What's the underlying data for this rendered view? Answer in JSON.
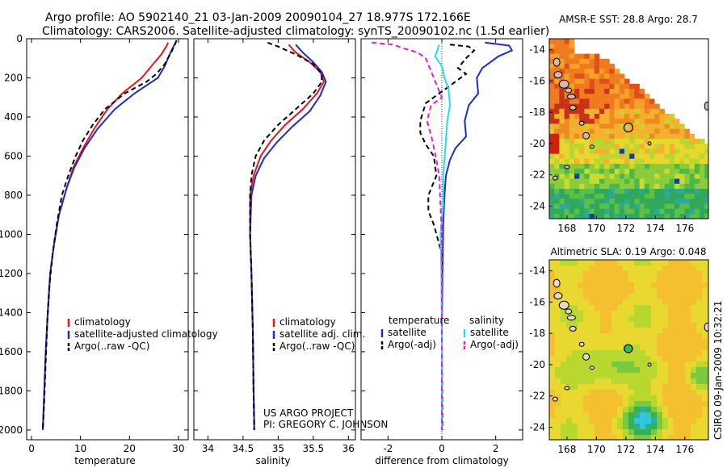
{
  "title_line1": "Argo profile: AO 5902140_21 03-Jan-2009 20090104_27 18.977S 172.166E",
  "title_line2": "Climatology: CARS2006. Satellite-adjusted climatology: synTS_20090102.nc (1.5d earlier)",
  "side_label": "CSIRO 09-Jan-2009 10:32:21",
  "project_line1": "US ARGO PROJECT",
  "project_line2": "PI: GREGORY C. JOHNSON",
  "colors": {
    "red": "#e8141a",
    "blue": "#1a2bd6",
    "black": "#000000",
    "cyan": "#22e0e8",
    "magenta": "#e81adc"
  },
  "chart_data": [
    {
      "type": "line",
      "xlabel": "temperature",
      "xlim": [
        -1,
        32
      ],
      "ylim": [
        2050,
        0
      ],
      "x_ticks": [
        "0",
        "10",
        "20",
        "30"
      ],
      "x_tick_values": [
        0,
        10,
        20,
        30
      ],
      "y_ticks": [
        "0",
        "200",
        "400",
        "600",
        "800",
        "1000",
        "1200",
        "1400",
        "1600",
        "1800",
        "2000"
      ],
      "y_tick_values": [
        0,
        200,
        400,
        600,
        800,
        1000,
        1200,
        1400,
        1600,
        1800,
        2000
      ],
      "legend": [
        {
          "label": "climatology",
          "color": "#e8141a",
          "dash": false
        },
        {
          "label": "satellite-adjusted climatology",
          "color": "#1a2bd6",
          "dash": false
        },
        {
          "label": "Argo(..raw -QC)",
          "color": "#000000",
          "dash": true
        }
      ],
      "series": [
        {
          "color": "#e8141a",
          "dash": false,
          "points": [
            [
              27.9,
              20
            ],
            [
              27.5,
              40
            ],
            [
              26.5,
              80
            ],
            [
              24.5,
              140
            ],
            [
              22.5,
              200
            ],
            [
              18.5,
              280
            ],
            [
              15.5,
              360
            ],
            [
              12.8,
              460
            ],
            [
              10.5,
              560
            ],
            [
              8.5,
              660
            ],
            [
              7.2,
              760
            ],
            [
              5.6,
              900
            ],
            [
              4.6,
              1050
            ],
            [
              3.8,
              1200
            ],
            [
              3.3,
              1400
            ],
            [
              2.9,
              1600
            ],
            [
              2.6,
              1800
            ],
            [
              2.3,
              2000
            ]
          ]
        },
        {
          "color": "#1a2bd6",
          "dash": false,
          "points": [
            [
              29.4,
              20
            ],
            [
              29.0,
              40
            ],
            [
              28.2,
              80
            ],
            [
              27.2,
              140
            ],
            [
              25.8,
              200
            ],
            [
              21.0,
              280
            ],
            [
              17.0,
              360
            ],
            [
              13.5,
              460
            ],
            [
              10.8,
              560
            ],
            [
              8.7,
              660
            ],
            [
              7.2,
              760
            ],
            [
              5.6,
              900
            ],
            [
              4.6,
              1050
            ],
            [
              3.8,
              1200
            ],
            [
              3.3,
              1400
            ],
            [
              2.9,
              1600
            ],
            [
              2.6,
              1800
            ],
            [
              2.3,
              2000
            ]
          ]
        },
        {
          "color": "#000000",
          "dash": true,
          "points": [
            [
              29.6,
              8
            ],
            [
              29.3,
              30
            ],
            [
              28.5,
              70
            ],
            [
              27.2,
              130
            ],
            [
              25.5,
              180
            ],
            [
              23.5,
              220
            ],
            [
              19.0,
              280
            ],
            [
              15.0,
              360
            ],
            [
              12.5,
              440
            ],
            [
              10.5,
              520
            ],
            [
              9.0,
              600
            ],
            [
              7.5,
              700
            ],
            [
              6.2,
              800
            ],
            [
              5.2,
              940
            ],
            [
              4.3,
              1100
            ],
            [
              3.7,
              1250
            ],
            [
              3.2,
              1450
            ],
            [
              2.9,
              1650
            ],
            [
              2.6,
              1850
            ],
            [
              2.3,
              2000
            ]
          ]
        }
      ]
    },
    {
      "type": "line",
      "xlabel": "salinity",
      "xlim": [
        33.8,
        36.1
      ],
      "ylim": [
        2050,
        0
      ],
      "x_ticks": [
        "34",
        "34.5",
        "35",
        "35.5",
        "36"
      ],
      "x_tick_values": [
        34,
        34.5,
        35,
        35.5,
        36
      ],
      "legend": [
        {
          "label": "climatology",
          "color": "#e8141a",
          "dash": false
        },
        {
          "label": "satellite adj. clim.",
          "color": "#1a2bd6",
          "dash": false
        },
        {
          "label": "Argo(..raw -QC)",
          "color": "#000000",
          "dash": true
        }
      ],
      "series": [
        {
          "color": "#e8141a",
          "dash": false,
          "points": [
            [
              35.15,
              30
            ],
            [
              35.25,
              70
            ],
            [
              35.45,
              120
            ],
            [
              35.6,
              170
            ],
            [
              35.65,
              220
            ],
            [
              35.55,
              280
            ],
            [
              35.35,
              360
            ],
            [
              35.1,
              440
            ],
            [
              34.9,
              520
            ],
            [
              34.75,
              600
            ],
            [
              34.65,
              700
            ],
            [
              34.6,
              800
            ],
            [
              34.6,
              1000
            ],
            [
              34.62,
              1200
            ],
            [
              34.64,
              1500
            ],
            [
              34.65,
              1800
            ],
            [
              34.66,
              2000
            ]
          ]
        },
        {
          "color": "#1a2bd6",
          "dash": false,
          "points": [
            [
              35.25,
              30
            ],
            [
              35.35,
              70
            ],
            [
              35.5,
              120
            ],
            [
              35.62,
              170
            ],
            [
              35.68,
              220
            ],
            [
              35.6,
              290
            ],
            [
              35.45,
              370
            ],
            [
              35.2,
              450
            ],
            [
              34.98,
              530
            ],
            [
              34.8,
              610
            ],
            [
              34.68,
              700
            ],
            [
              34.62,
              800
            ],
            [
              34.6,
              1000
            ],
            [
              34.62,
              1200
            ],
            [
              34.64,
              1500
            ],
            [
              34.65,
              1800
            ],
            [
              34.66,
              2000
            ]
          ]
        },
        {
          "color": "#000000",
          "dash": true,
          "points": [
            [
              34.85,
              20
            ],
            [
              35.0,
              40
            ],
            [
              35.25,
              80
            ],
            [
              35.5,
              130
            ],
            [
              35.62,
              180
            ],
            [
              35.62,
              220
            ],
            [
              35.5,
              280
            ],
            [
              35.25,
              360
            ],
            [
              35.0,
              440
            ],
            [
              34.8,
              520
            ],
            [
              34.68,
              600
            ],
            [
              34.62,
              700
            ],
            [
              34.6,
              800
            ],
            [
              34.6,
              1000
            ],
            [
              34.62,
              1200
            ],
            [
              34.64,
              1500
            ],
            [
              34.65,
              1800
            ],
            [
              34.66,
              2000
            ]
          ]
        }
      ]
    },
    {
      "type": "line",
      "xlabel": "difference from climatology",
      "xlim": [
        -3,
        3
      ],
      "ylim": [
        2050,
        0
      ],
      "x_ticks": [
        "-2",
        "0",
        "2"
      ],
      "x_tick_values": [
        -2,
        0,
        2
      ],
      "legend_left_title": "temperature",
      "legend_right_title": "salinity",
      "legend_left": [
        {
          "label": "satellite",
          "color": "#1a2bd6",
          "dash": false
        },
        {
          "label": "Argo(-adj)",
          "color": "#000000",
          "dash": true
        }
      ],
      "legend_right": [
        {
          "label": "satellite",
          "color": "#22e0e8",
          "dash": false
        },
        {
          "label": "Argo(-adj)",
          "color": "#e81adc",
          "dash": true
        }
      ],
      "series": [
        {
          "color": "#1a2bd6",
          "dash": false,
          "points": [
            [
              1.6,
              20
            ],
            [
              2.5,
              35
            ],
            [
              2.6,
              60
            ],
            [
              2.1,
              90
            ],
            [
              1.5,
              150
            ],
            [
              1.3,
              200
            ],
            [
              1.35,
              280
            ],
            [
              1.0,
              340
            ],
            [
              0.85,
              420
            ],
            [
              0.9,
              500
            ],
            [
              0.5,
              560
            ],
            [
              0.3,
              620
            ],
            [
              0.15,
              700
            ],
            [
              0.1,
              800
            ],
            [
              0.05,
              950
            ],
            [
              0.02,
              1200
            ],
            [
              0.0,
              1500
            ],
            [
              0.0,
              2000
            ]
          ]
        },
        {
          "color": "#000000",
          "dash": true,
          "points": [
            [
              0.3,
              30
            ],
            [
              1.0,
              40
            ],
            [
              1.2,
              60
            ],
            [
              0.9,
              100
            ],
            [
              0.6,
              150
            ],
            [
              0.9,
              180
            ],
            [
              0.3,
              240
            ],
            [
              -0.6,
              330
            ],
            [
              -0.8,
              420
            ],
            [
              -0.8,
              480
            ],
            [
              -0.6,
              540
            ],
            [
              -0.3,
              600
            ],
            [
              -0.2,
              700
            ],
            [
              -0.5,
              800
            ],
            [
              -0.5,
              880
            ],
            [
              -0.3,
              950
            ],
            [
              0.0,
              1100
            ],
            [
              0.0,
              1500
            ],
            [
              0.02,
              2000
            ]
          ]
        },
        {
          "color": "#22e0e8",
          "dash": false,
          "points": [
            [
              -0.1,
              30
            ],
            [
              -0.25,
              90
            ],
            [
              0.0,
              140
            ],
            [
              0.1,
              200
            ],
            [
              0.25,
              260
            ],
            [
              0.3,
              340
            ],
            [
              0.2,
              420
            ],
            [
              0.15,
              520
            ],
            [
              0.05,
              700
            ],
            [
              0.05,
              850
            ],
            [
              -0.05,
              1000
            ],
            [
              -0.02,
              1200
            ],
            [
              0.0,
              1500
            ],
            [
              0.0,
              2000
            ]
          ]
        },
        {
          "color": "#e81adc",
          "dash": true,
          "points": [
            [
              -2.6,
              20
            ],
            [
              -1.8,
              30
            ],
            [
              -1.4,
              50
            ],
            [
              -0.9,
              70
            ],
            [
              -0.6,
              100
            ],
            [
              -0.3,
              200
            ],
            [
              0.0,
              300
            ],
            [
              -0.4,
              340
            ],
            [
              -0.55,
              420
            ],
            [
              -0.35,
              520
            ],
            [
              -0.2,
              620
            ],
            [
              -0.1,
              700
            ],
            [
              -0.05,
              850
            ],
            [
              0.0,
              1000
            ],
            [
              0.0,
              1500
            ],
            [
              0.0,
              2000
            ]
          ]
        }
      ]
    },
    {
      "type": "heatmap",
      "title": "AMSR-E SST: 28.8 Argo: 28.7",
      "x_ticks": [
        "168",
        "170",
        "172",
        "174",
        "176"
      ],
      "x_tick_values": [
        168,
        170,
        172,
        174,
        176
      ],
      "y_ticks": [
        "-14",
        "-16",
        "-18",
        "-20",
        "-22",
        "-24"
      ],
      "y_tick_values": [
        -14,
        -16,
        -18,
        -20,
        -22,
        -24
      ],
      "xlim": [
        166.8,
        177.6
      ],
      "ylim": [
        -24.8,
        -13.3
      ],
      "marker": {
        "lon": 172.166,
        "lat": -18.977
      }
    },
    {
      "type": "heatmap",
      "title": "Altimetric SLA: 0.19 Argo: 0.048",
      "x_ticks": [
        "168",
        "170",
        "172",
        "174",
        "176"
      ],
      "x_tick_values": [
        168,
        170,
        172,
        174,
        176
      ],
      "y_ticks": [
        "-14",
        "-16",
        "-18",
        "-20",
        "-22",
        "-24"
      ],
      "y_tick_values": [
        -14,
        -16,
        -18,
        -20,
        -22,
        -24
      ],
      "xlim": [
        166.8,
        177.6
      ],
      "ylim": [
        -24.8,
        -13.3
      ],
      "marker": {
        "lon": 172.166,
        "lat": -18.977
      }
    }
  ]
}
